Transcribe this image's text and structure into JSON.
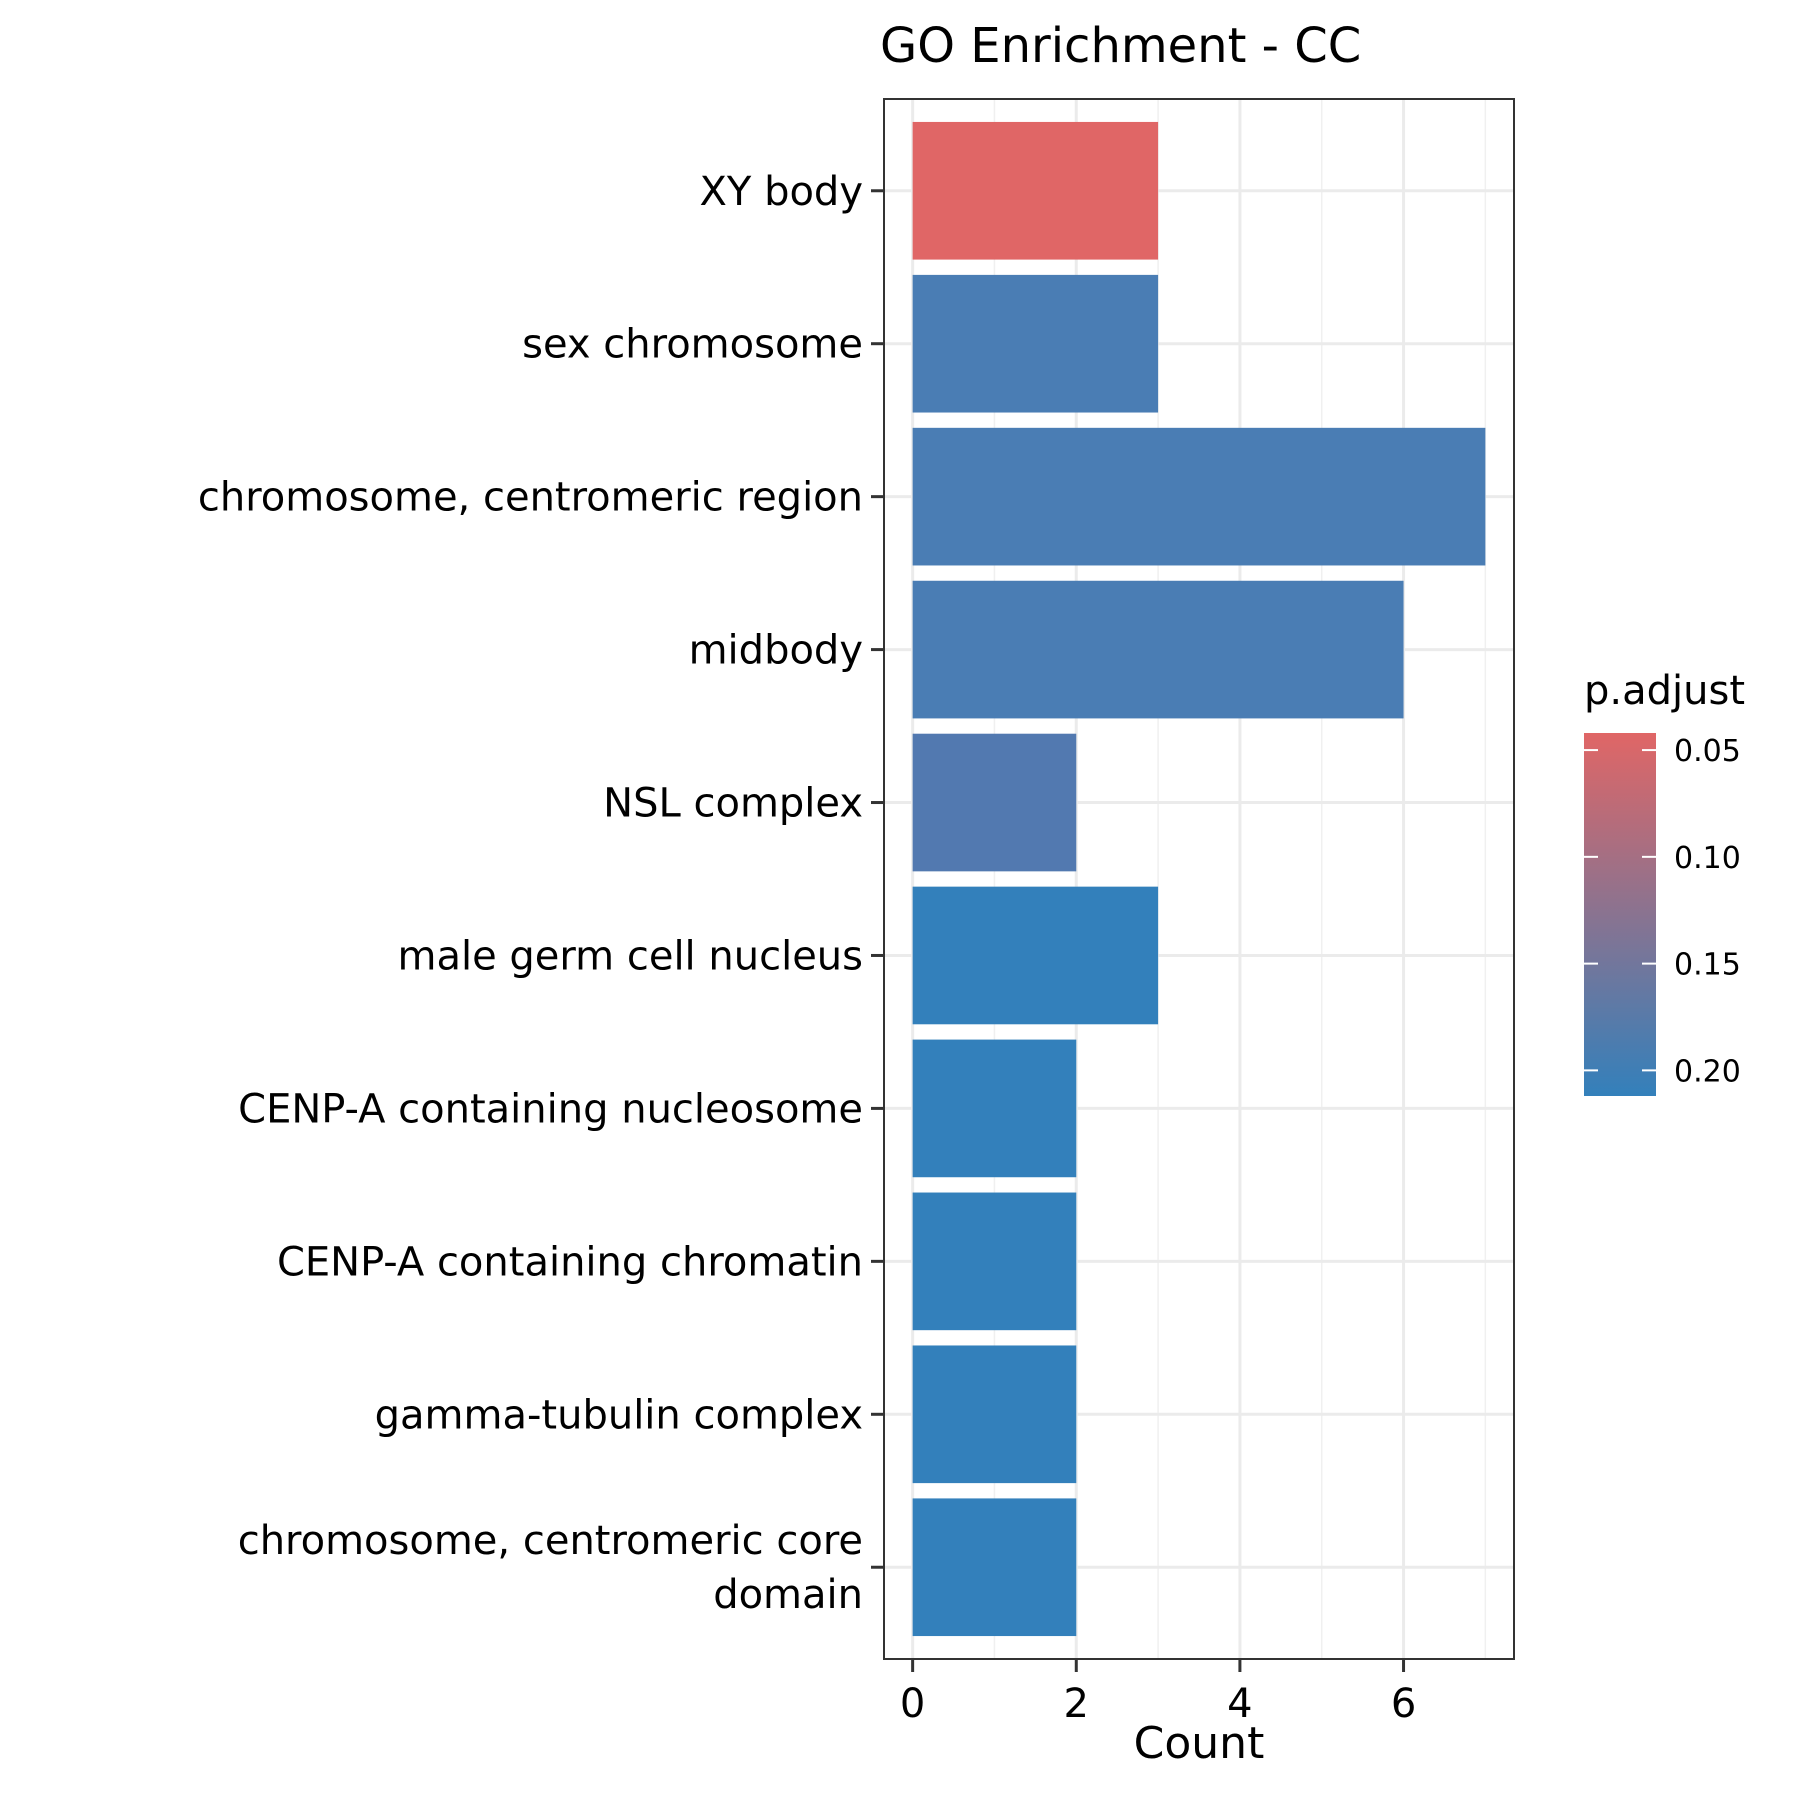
{
  "chart_data": {
    "type": "bar",
    "orientation": "horizontal",
    "title": "GO Enrichment - CC",
    "xlabel": "Count",
    "ylabel": "",
    "xlim": [
      -0.35,
      7.35
    ],
    "xticks": [
      0,
      2,
      4,
      6
    ],
    "xtick_labels": [
      "0",
      "2",
      "4",
      "6"
    ],
    "grid": true,
    "categories": [
      [
        "XY body"
      ],
      [
        "sex chromosome"
      ],
      [
        "chromosome, centromeric region"
      ],
      [
        "midbody"
      ],
      [
        "NSL complex"
      ],
      [
        "male germ cell nucleus"
      ],
      [
        "CENP-A containing nucleosome"
      ],
      [
        "CENP-A containing chromatin"
      ],
      [
        "gamma-tubulin complex"
      ],
      [
        "chromosome, centromeric core",
        "domain"
      ]
    ],
    "values": [
      3,
      3,
      7,
      6,
      2,
      3,
      2,
      2,
      2,
      2
    ],
    "colors": [
      "#e06666",
      "#4a7db4",
      "#4a7db4",
      "#4a7db4",
      "#5279b0",
      "#3380bb",
      "#3380bb",
      "#3380bb",
      "#3380bb",
      "#3380bb"
    ],
    "legend": {
      "title": "p.adjust",
      "position": "right",
      "labels": [
        "0.05",
        "0.10",
        "0.15",
        "0.20"
      ],
      "label_values": [
        0.05,
        0.1,
        0.15,
        0.2
      ],
      "range": [
        0.042,
        0.212
      ],
      "color_low": "#e06666",
      "color_high": "#3380bb"
    }
  }
}
